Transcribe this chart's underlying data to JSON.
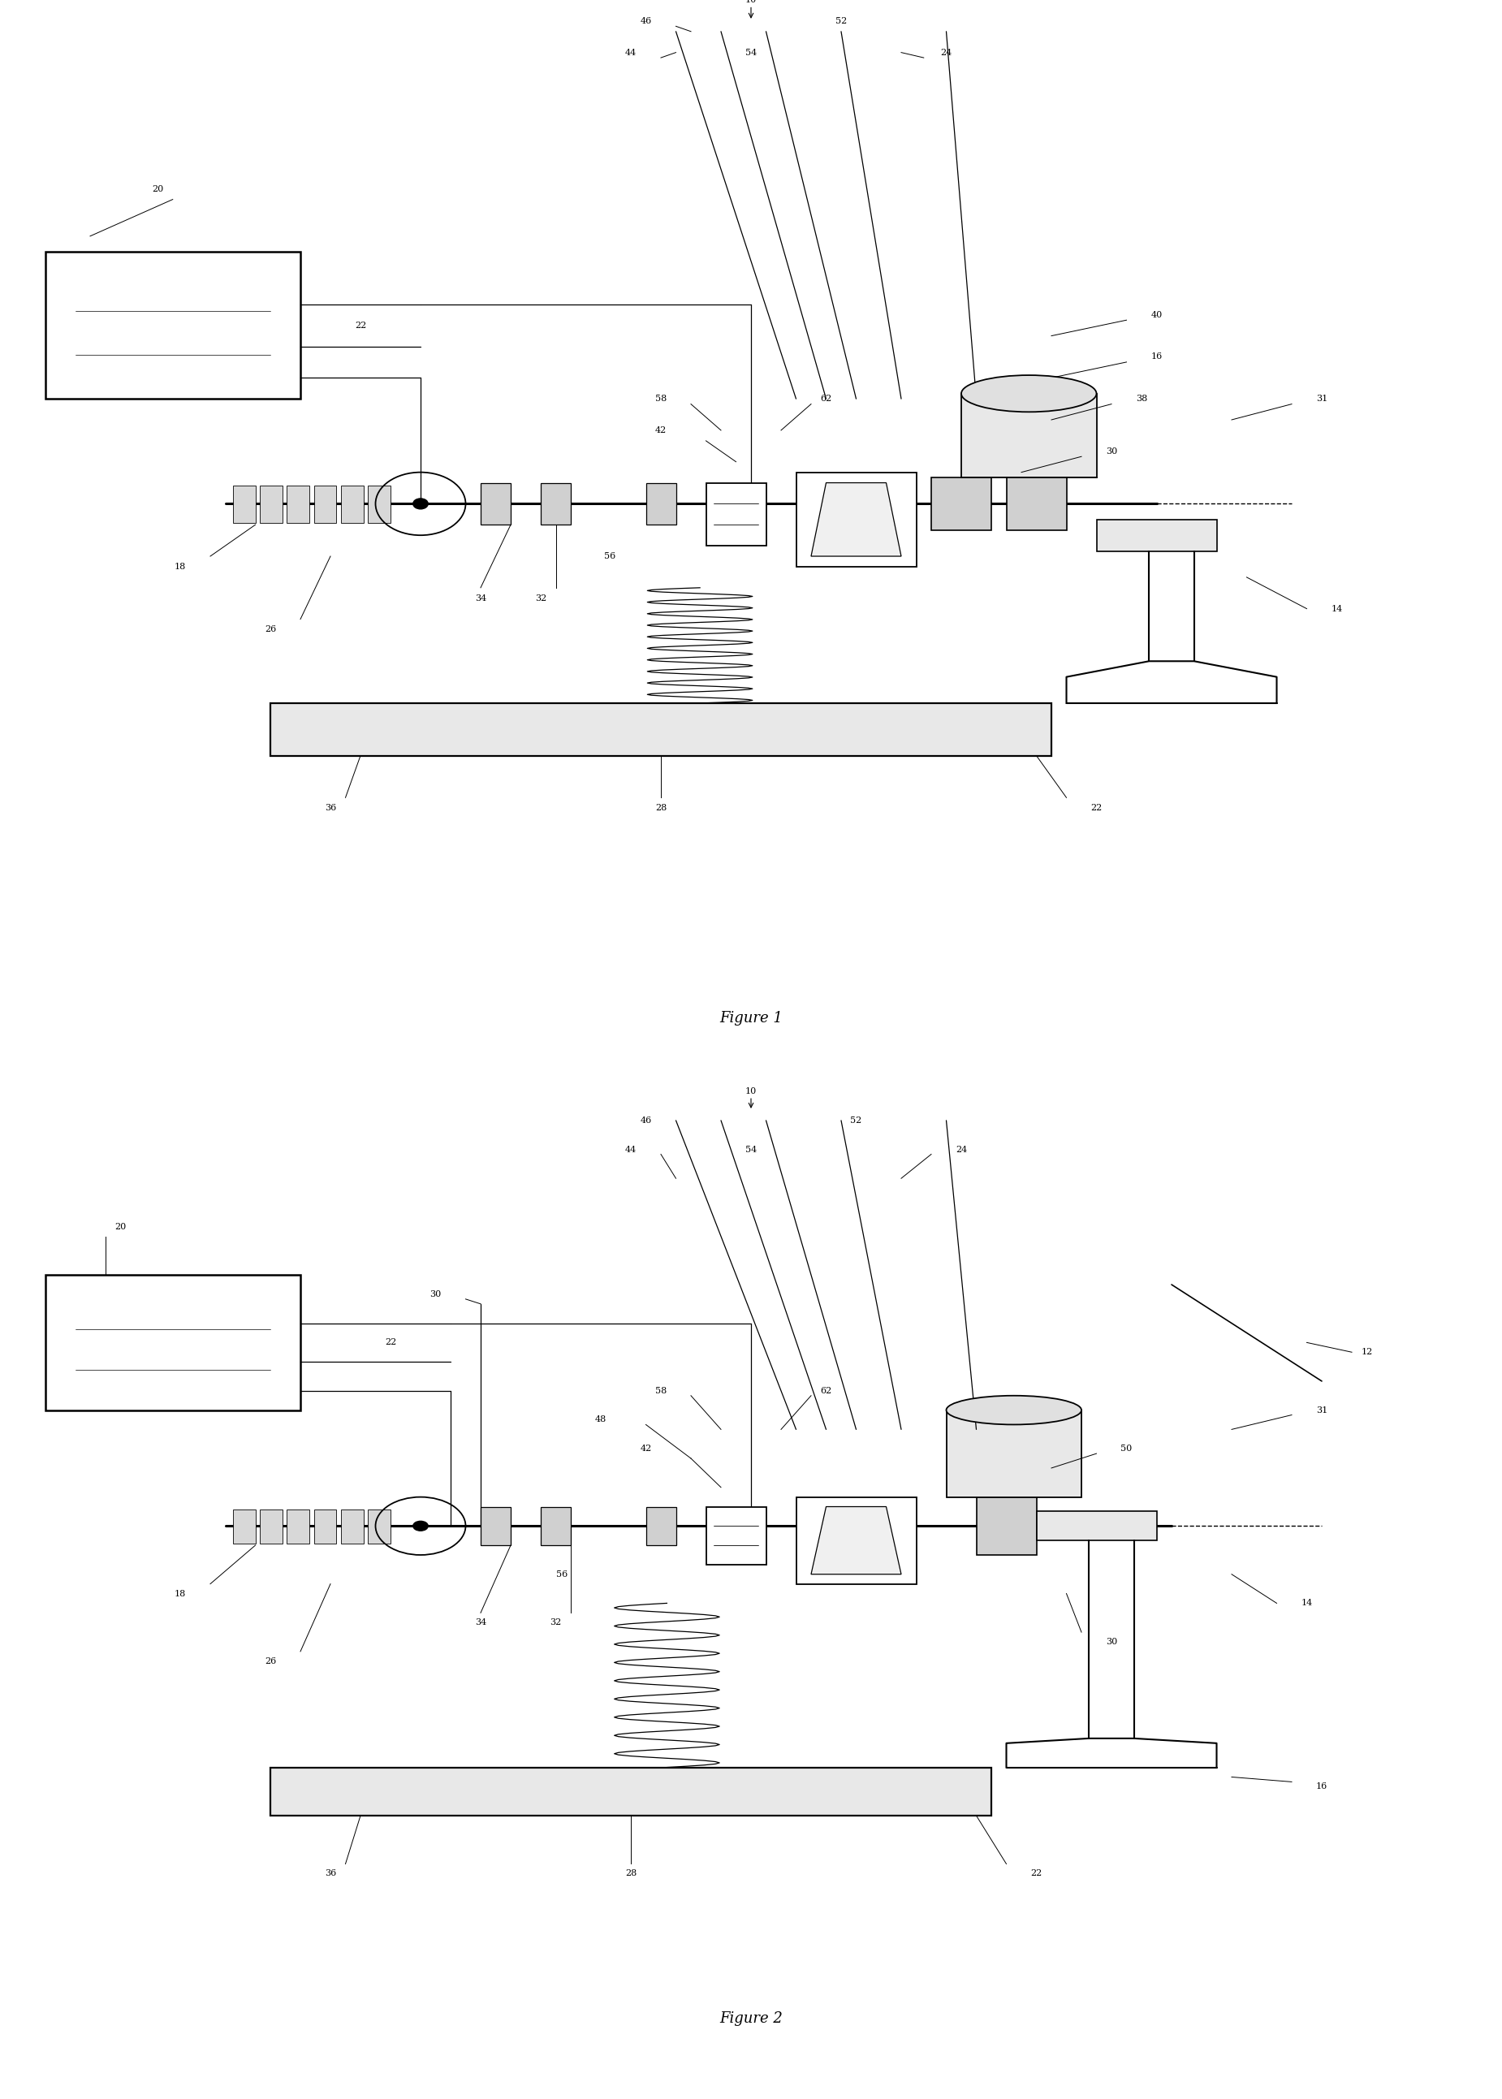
{
  "fig_width": 18.5,
  "fig_height": 25.85,
  "bg_color": "#ffffff",
  "figure1_caption": "Figure 1",
  "figure2_caption": "Figure 2"
}
